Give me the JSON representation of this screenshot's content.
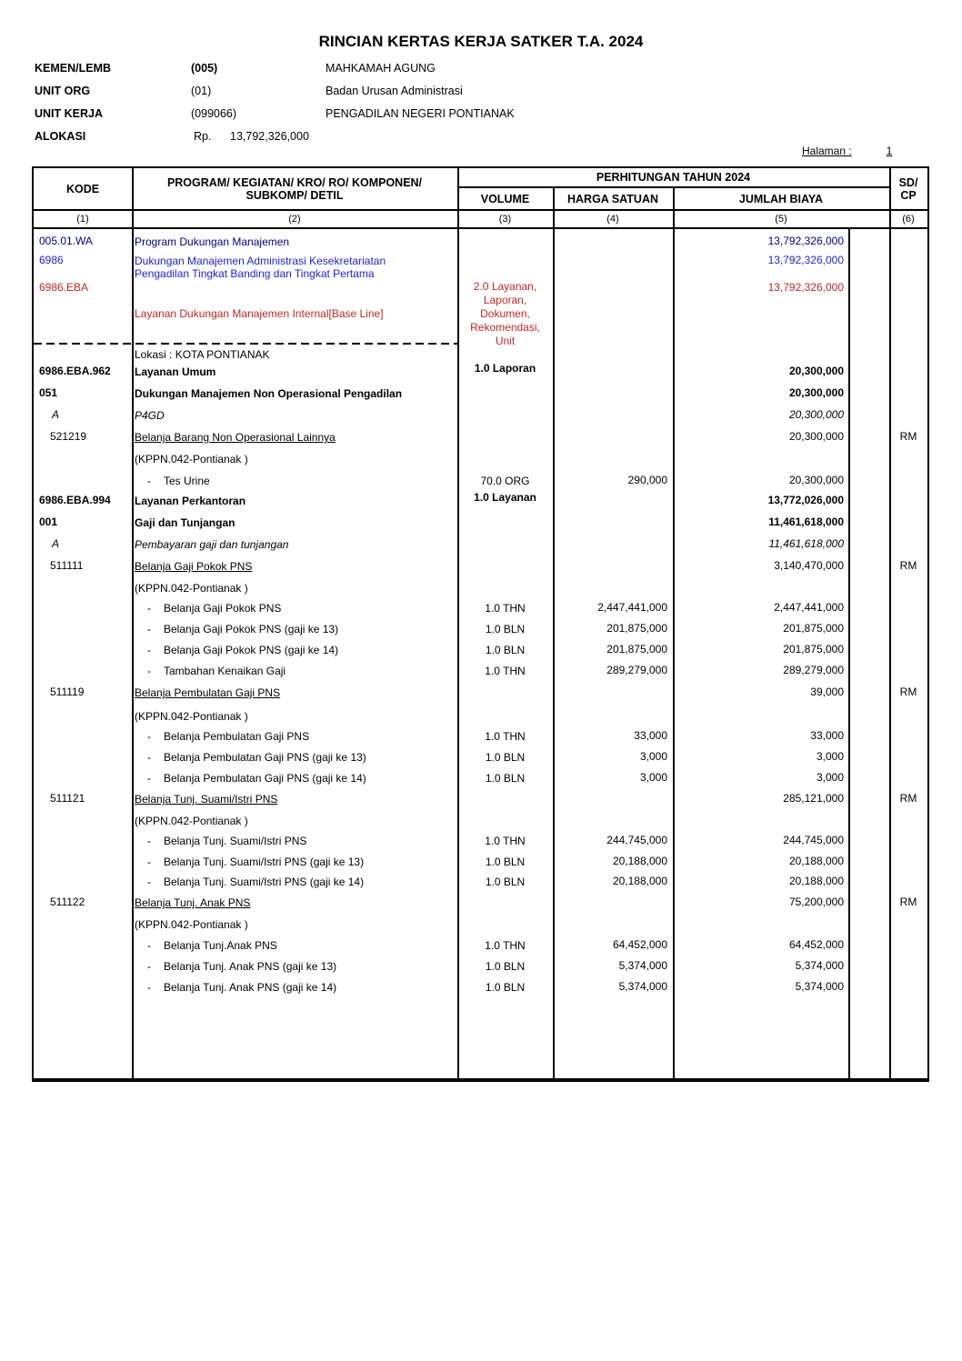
{
  "doc_header": {
    "title": "RINCIAN KERTAS KERJA SATKER T.A. 2024",
    "fields": [
      {
        "label": "KEMEN/LEMB",
        "code": "(005)",
        "value": "MAHKAMAH AGUNG"
      },
      {
        "label": "UNIT ORG",
        "code": "(01)",
        "value": "Badan Urusan Administrasi"
      },
      {
        "label": "UNIT KERJA",
        "code": "(099066)",
        "value": "PENGADILAN NEGERI PONTIANAK"
      },
      {
        "label": "ALOKASI",
        "code": "Rp.",
        "value": "13,792,326,000"
      }
    ],
    "page_label": "Halaman :",
    "page_number": "1"
  },
  "table": {
    "header": {
      "kode": "KODE",
      "program_line1": "PROGRAM/ KEGIATAN/ KRO/ RO/ KOMPONEN/",
      "program_line2": "SUBKOMP/ DETIL",
      "perhitungan": "PERHITUNGAN TAHUN 2024",
      "volume": "VOLUME",
      "harga": "HARGA SATUAN",
      "jumlah": "JUMLAH BIAYA",
      "sdcp_line1": "SD/",
      "sdcp_line2": "CP",
      "col_numbers": [
        "(1)",
        "(2)",
        "(3)",
        "(4)",
        "(5)",
        "(6)"
      ]
    },
    "colors": {
      "program": "#000080",
      "kegiatan": "#2323CE",
      "output": "#B62A2A"
    },
    "rows": [
      {
        "t": 7,
        "c": "program",
        "k": "005.01.WA",
        "ki": 6,
        "d": "Program Dukungan Manajemen",
        "j": "13,792,326,000"
      },
      {
        "t": 28,
        "c": "kegiatan",
        "k": "6986",
        "ki": 6,
        "d": "Dukungan Manajemen Administrasi Kesekretariatan\nPengadilan Tingkat Banding dan Tingkat Pertama",
        "j": "13,792,326,000"
      },
      {
        "t": 58,
        "c": "output",
        "k": "6986.EBA",
        "ki": 6,
        "v": "2.0 Layanan,\nLaporan,\nDokumen,\nRekomendasi,\nUnit",
        "vt": 56,
        "j": "13,792,326,000"
      },
      {
        "t": 86,
        "c": "output",
        "d": "Layanan Dukungan Manajemen Internal[Base Line]"
      },
      {
        "type": "dashline",
        "t": 125
      },
      {
        "t": 131,
        "c": "plain",
        "d": "Lokasi : KOTA PONTIANAK"
      },
      {
        "t": 150,
        "c": "bold",
        "k": "6986.EBA.962",
        "ki": 6,
        "d": "Layanan Umum",
        "v": "1.0 Laporan",
        "vt": 146,
        "j": "20,300,000"
      },
      {
        "t": 174,
        "c": "bold",
        "k": "051",
        "ki": 6,
        "d": "Dukungan Manajemen Non Operasional Pengadilan",
        "j": "20,300,000"
      },
      {
        "t": 198,
        "c": "italic",
        "k": "A",
        "ki": 20,
        "d": "P4GD",
        "j": "20,300,000"
      },
      {
        "t": 222,
        "c": "account",
        "k": "521219",
        "ki": 18,
        "d": "Belanja Barang Non Operasional Lainnya",
        "j": "20,300,000",
        "s": "RM"
      },
      {
        "t": 246,
        "c": "plain",
        "d": "(KPPN.042-Pontianak )"
      },
      {
        "t": 270,
        "c": "plain",
        "dash": true,
        "d": "Tes Urine",
        "v": "70.0 ORG",
        "h": "290,000",
        "j": "20,300,000"
      },
      {
        "t": 292,
        "c": "bold",
        "k": "6986.EBA.994",
        "ki": 6,
        "d": "Layanan Perkantoran",
        "v": "1.0 Layanan",
        "vt": 288,
        "j": "13,772,026,000"
      },
      {
        "t": 316,
        "c": "bold",
        "k": "001",
        "ki": 6,
        "d": "Gaji dan Tunjangan",
        "j": "11,461,618,000"
      },
      {
        "t": 340,
        "c": "italic",
        "k": "A",
        "ki": 20,
        "d": "Pembayaran gaji dan tunjangan",
        "j": "11,461,618,000"
      },
      {
        "t": 364,
        "c": "account",
        "k": "511111",
        "ki": 18,
        "d": "Belanja Gaji Pokok PNS",
        "j": "3,140,470,000",
        "s": "RM"
      },
      {
        "t": 388,
        "c": "plain",
        "d": "(KPPN.042-Pontianak )"
      },
      {
        "t": 410,
        "c": "plain",
        "dash": true,
        "d": "Belanja Gaji Pokok PNS",
        "v": "1.0 THN",
        "h": "2,447,441,000",
        "j": "2,447,441,000"
      },
      {
        "t": 433,
        "c": "plain",
        "dash": true,
        "d": "Belanja Gaji Pokok PNS (gaji ke 13)",
        "v": "1.0 BLN",
        "h": "201,875,000",
        "j": "201,875,000"
      },
      {
        "t": 456,
        "c": "plain",
        "dash": true,
        "d": "Belanja Gaji Pokok PNS (gaji ke 14)",
        "v": "1.0 BLN",
        "h": "201,875,000",
        "j": "201,875,000"
      },
      {
        "t": 479,
        "c": "plain",
        "dash": true,
        "d": "Tambahan Kenaikan Gaji",
        "v": "1.0 THN",
        "h": "289,279,000",
        "j": "289,279,000"
      },
      {
        "t": 503,
        "c": "account",
        "k": "511119",
        "ki": 18,
        "d": "Belanja Pembulatan Gaji PNS",
        "j": "39,000",
        "s": "RM"
      },
      {
        "t": 529,
        "c": "plain",
        "d": "(KPPN.042-Pontianak )"
      },
      {
        "t": 551,
        "c": "plain",
        "dash": true,
        "d": "Belanja Pembulatan Gaji PNS",
        "v": "1.0 THN",
        "h": "33,000",
        "j": "33,000"
      },
      {
        "t": 574,
        "c": "plain",
        "dash": true,
        "d": "Belanja Pembulatan Gaji PNS (gaji ke 13)",
        "v": "1.0 BLN",
        "h": "3,000",
        "j": "3,000"
      },
      {
        "t": 597,
        "c": "plain",
        "dash": true,
        "d": "Belanja Pembulatan Gaji PNS (gaji ke 14)",
        "v": "1.0 BLN",
        "h": "3,000",
        "j": "3,000"
      },
      {
        "t": 620,
        "c": "account",
        "k": "511121",
        "ki": 18,
        "d": "Belanja Tunj. Suami/Istri PNS",
        "j": "285,121,000",
        "s": "RM"
      },
      {
        "t": 644,
        "c": "plain",
        "d": "(KPPN.042-Pontianak )"
      },
      {
        "t": 666,
        "c": "plain",
        "dash": true,
        "d": "Belanja Tunj. Suami/Istri PNS",
        "v": "1.0 THN",
        "h": "244,745,000",
        "j": "244,745,000"
      },
      {
        "t": 689,
        "c": "plain",
        "dash": true,
        "d": "Belanja Tunj. Suami/Istri PNS (gaji ke 13)",
        "v": "1.0 BLN",
        "h": "20,188,000",
        "j": "20,188,000"
      },
      {
        "t": 711,
        "c": "plain",
        "dash": true,
        "d": "Belanja Tunj. Suami/Istri PNS (gaji ke 14)",
        "v": "1.0 BLN",
        "h": "20,188,000",
        "j": "20,188,000"
      },
      {
        "t": 734,
        "c": "account",
        "k": "511122",
        "ki": 18,
        "d": "Belanja Tunj. Anak PNS",
        "j": "75,200,000",
        "s": "RM"
      },
      {
        "t": 758,
        "c": "plain",
        "d": "(KPPN.042-Pontianak )"
      },
      {
        "t": 781,
        "c": "plain",
        "dash": true,
        "d": "Belanja Tunj.Anak PNS",
        "v": "1.0 THN",
        "h": "64,452,000",
        "j": "64,452,000"
      },
      {
        "t": 804,
        "c": "plain",
        "dash": true,
        "d": "Belanja Tunj. Anak PNS (gaji ke 13)",
        "v": "1.0 BLN",
        "h": "5,374,000",
        "j": "5,374,000"
      },
      {
        "t": 827,
        "c": "plain",
        "dash": true,
        "d": "Belanja Tunj. Anak PNS (gaji ke 14)",
        "v": "1.0 BLN",
        "h": "5,374,000",
        "j": "5,374,000"
      }
    ]
  }
}
